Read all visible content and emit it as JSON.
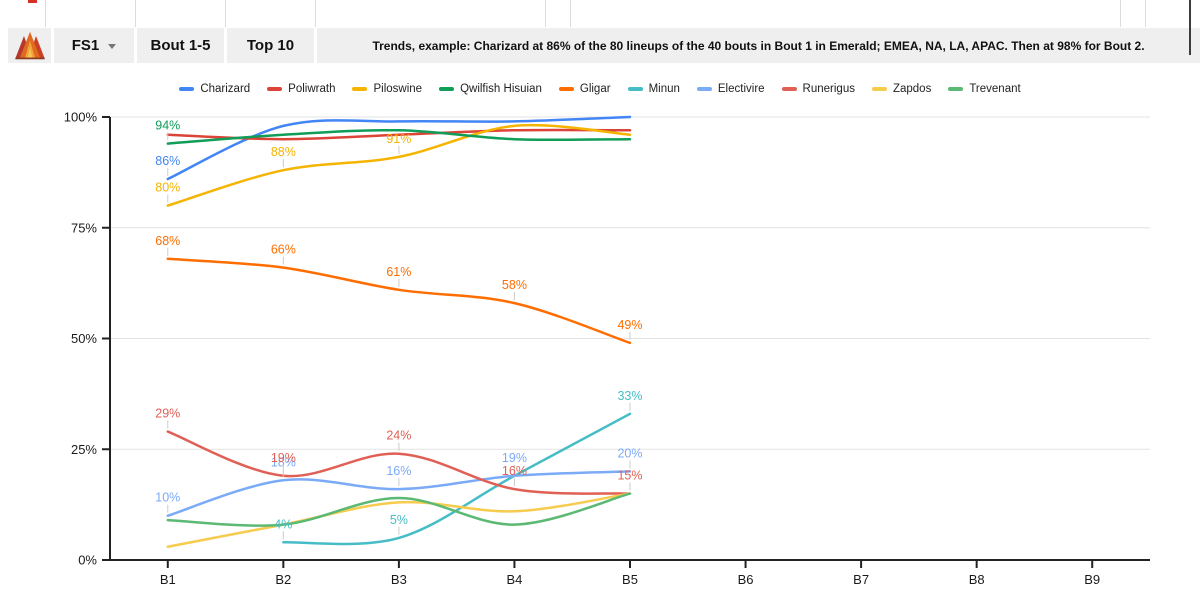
{
  "header": {
    "tabs": [
      {
        "label": "FS1"
      },
      {
        "label": "Bout 1-5"
      },
      {
        "label": "Top 10"
      }
    ],
    "trends_note": "Trends, example: Charizard at 86% of the 80 lineups of the 40 bouts in Bout 1 in Emerald; EMEA, NA, LA, APAC. Then at 98% for Bout 2."
  },
  "chart_style": {
    "header_bg": "#efefef",
    "axis_color": "#222222",
    "gridline_color": "#e3e3e3",
    "annotation_stem_color": "#cccccc"
  },
  "chart_data": {
    "type": "line",
    "curve": "smooth",
    "legend_position": "top",
    "grid": true,
    "x_categories": [
      "B1",
      "B2",
      "B3",
      "B4",
      "B5",
      "B6",
      "B7",
      "B8",
      "B9"
    ],
    "y_ticks": [
      {
        "label": "0%",
        "value": 0
      },
      {
        "label": "25%",
        "value": 25
      },
      {
        "label": "50%",
        "value": 50
      },
      {
        "label": "75%",
        "value": 75
      },
      {
        "label": "100%",
        "value": 100
      }
    ],
    "ylim": [
      0,
      100
    ],
    "series": [
      {
        "name": "Charizard",
        "color": "#4285F4",
        "values": [
          86,
          98,
          99,
          99,
          100,
          null,
          null,
          null,
          null
        ],
        "labeled_points": [
          0
        ]
      },
      {
        "name": "Poliwrath",
        "color": "#DB4437",
        "values": [
          96,
          95,
          96,
          97,
          97,
          null,
          null,
          null,
          null
        ],
        "labeled_points": []
      },
      {
        "name": "Piloswine",
        "color": "#F4B400",
        "values": [
          80,
          88,
          91,
          98,
          96,
          null,
          null,
          null,
          null
        ],
        "labeled_points": [
          0,
          1,
          2
        ]
      },
      {
        "name": "Qwilfish Hisuian",
        "color": "#0F9D58",
        "values": [
          94,
          96,
          97,
          95,
          95,
          null,
          null,
          null,
          null
        ],
        "labeled_points": [
          0
        ]
      },
      {
        "name": "Gligar",
        "color": "#FF6D01",
        "values": [
          68,
          66,
          61,
          58,
          49,
          null,
          null,
          null,
          null
        ],
        "labeled_points": [
          0,
          1,
          2,
          3,
          4
        ]
      },
      {
        "name": "Minun",
        "color": "#46BDC6",
        "values": [
          null,
          4,
          5,
          19,
          33,
          null,
          null,
          null,
          null
        ],
        "labeled_points": [
          1,
          2,
          4
        ]
      },
      {
        "name": "Electivire",
        "color": "#7BAAF7",
        "values": [
          10,
          18,
          16,
          19,
          20,
          null,
          null,
          null,
          null
        ],
        "labeled_points": [
          0,
          1,
          2,
          3,
          4
        ]
      },
      {
        "name": "Runerigus",
        "color": "#E06055",
        "values": [
          29,
          19,
          24,
          16,
          15,
          null,
          null,
          null,
          null
        ],
        "labeled_points": [
          0,
          1,
          2,
          3,
          4
        ]
      },
      {
        "name": "Zapdos",
        "color": "#F7CB4D",
        "values": [
          3,
          8,
          13,
          11,
          15,
          null,
          null,
          null,
          null
        ],
        "labeled_points": []
      },
      {
        "name": "Trevenant",
        "color": "#5BB974",
        "values": [
          9,
          8,
          14,
          8,
          15,
          null,
          null,
          null,
          null
        ],
        "labeled_points": []
      }
    ]
  }
}
